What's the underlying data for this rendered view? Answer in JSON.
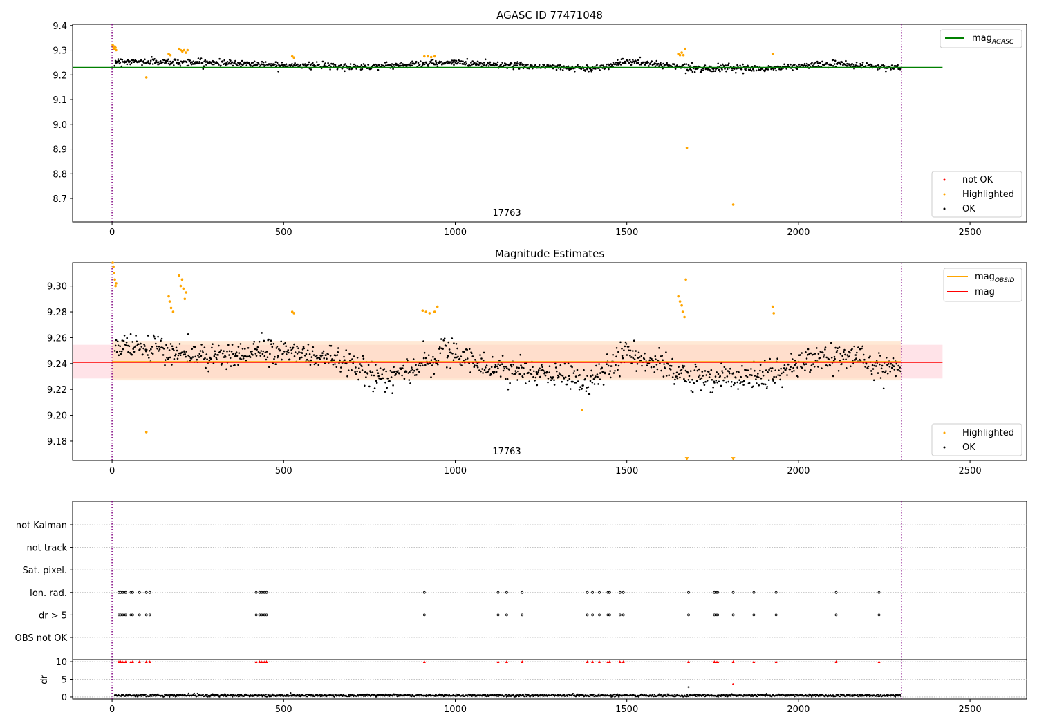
{
  "figure": {
    "colors": {
      "ok": "#000000",
      "highlighted": "#ffa500",
      "not_ok": "#ff0000",
      "mag_agasc_line": "#008000",
      "mag_line": "#ff0000",
      "mag_obsid_line": "#ffa500",
      "vline": "#800080",
      "band_mag": "#ffc0cb",
      "band_obsid": "#ffdab9",
      "grid": "#b0b0b0"
    }
  },
  "chart_data": [
    {
      "id": "panel1",
      "type": "scatter",
      "title": "AGASC ID 77471048",
      "xlabel": "",
      "ylabel": "",
      "xlim": [
        -115,
        2665
      ],
      "ylim": [
        8.605,
        9.405
      ],
      "xticks": [
        0,
        500,
        1000,
        1500,
        2000,
        2500
      ],
      "yticks": [
        9.4,
        9.3,
        9.2,
        9.1,
        9.0,
        8.9,
        8.8,
        8.7
      ],
      "ytick_decimals": 1,
      "grid": false,
      "obsid_label": "17763",
      "obsid_label_x": 1150,
      "obsid_boundaries": [
        0,
        2300
      ],
      "lines": [
        {
          "name": "mag_AGASC",
          "label_main": "mag",
          "label_sub": "AGASC",
          "y": 9.23,
          "x": [
            -115,
            2420
          ]
        }
      ],
      "legend_top": {
        "placement": "upper-right",
        "entries": [
          "mag_AGASC"
        ]
      },
      "legend_bottom": {
        "placement": "lower-right",
        "entries": [
          "not OK",
          "Highlighted",
          "OK"
        ]
      },
      "series": [
        {
          "name": "OK",
          "baseline": [
            [
              0,
              9.255
            ],
            [
              300,
              9.25
            ],
            [
              700,
              9.232
            ],
            [
              1000,
              9.25
            ],
            [
              1400,
              9.225
            ],
            [
              1500,
              9.255
            ],
            [
              1700,
              9.228
            ],
            [
              1900,
              9.225
            ],
            [
              2100,
              9.245
            ],
            [
              2300,
              9.228
            ]
          ],
          "n": 1150,
          "noise": 0.012
        },
        {
          "name": "Highlighted",
          "points": [
            [
              2,
              9.32
            ],
            [
              4,
              9.31
            ],
            [
              6,
              9.305
            ],
            [
              8,
              9.315
            ],
            [
              10,
              9.31
            ],
            [
              12,
              9.3
            ],
            [
              100,
              9.19
            ],
            [
              165,
              9.285
            ],
            [
              170,
              9.28
            ],
            [
              195,
              9.305
            ],
            [
              200,
              9.3
            ],
            [
              205,
              9.295
            ],
            [
              210,
              9.3
            ],
            [
              215,
              9.29
            ],
            [
              220,
              9.3
            ],
            [
              525,
              9.275
            ],
            [
              530,
              9.27
            ],
            [
              910,
              9.275
            ],
            [
              920,
              9.275
            ],
            [
              930,
              9.272
            ],
            [
              940,
              9.275
            ],
            [
              1650,
              9.285
            ],
            [
              1655,
              9.28
            ],
            [
              1660,
              9.29
            ],
            [
              1665,
              9.28
            ],
            [
              1670,
              9.305
            ],
            [
              1675,
              8.905
            ],
            [
              1810,
              8.675
            ],
            [
              1925,
              9.285
            ]
          ]
        },
        {
          "name": "not OK",
          "points": []
        }
      ]
    },
    {
      "id": "panel2",
      "type": "scatter",
      "title": "Magnitude Estimates",
      "xlabel": "",
      "ylabel": "",
      "xlim": [
        -115,
        2665
      ],
      "ylim": [
        9.165,
        9.318
      ],
      "xticks": [
        0,
        500,
        1000,
        1500,
        2000,
        2500
      ],
      "yticks": [
        9.3,
        9.28,
        9.26,
        9.24,
        9.22,
        9.2,
        9.18
      ],
      "ytick_decimals": 2,
      "grid": false,
      "obsid_label": "17763",
      "obsid_label_x": 1150,
      "obsid_boundaries": [
        0,
        2300
      ],
      "lines": [
        {
          "name": "mag_OBSID",
          "label_main": "mag",
          "label_sub": "OBSID",
          "y": 9.2415,
          "x": [
            0,
            2300
          ]
        },
        {
          "name": "mag",
          "label_main": "mag",
          "label_sub": "",
          "y": 9.241,
          "x": [
            -115,
            2420
          ]
        }
      ],
      "bands": [
        {
          "name": "mag",
          "y": [
            9.2285,
            9.2545
          ],
          "x": [
            -115,
            2420
          ]
        },
        {
          "name": "mag_OBSID",
          "y": [
            9.227,
            9.2575
          ],
          "x": [
            0,
            2300
          ]
        }
      ],
      "legend_top": {
        "placement": "upper-right",
        "entries": [
          "mag_OBSID",
          "mag"
        ]
      },
      "legend_bottom": {
        "placement": "lower-right",
        "entries": [
          "Highlighted",
          "OK"
        ]
      },
      "series": [
        {
          "name": "OK",
          "baseline": [
            [
              0,
              9.255
            ],
            [
              300,
              9.245
            ],
            [
              500,
              9.25
            ],
            [
              700,
              9.24
            ],
            [
              800,
              9.228
            ],
            [
              1000,
              9.25
            ],
            [
              1100,
              9.235
            ],
            [
              1300,
              9.232
            ],
            [
              1400,
              9.226
            ],
            [
              1450,
              9.238
            ],
            [
              1500,
              9.25
            ],
            [
              1600,
              9.238
            ],
            [
              1700,
              9.228
            ],
            [
              1900,
              9.23
            ],
            [
              2000,
              9.24
            ],
            [
              2150,
              9.245
            ],
            [
              2300,
              9.235
            ]
          ],
          "n": 1150,
          "noise": 0.009
        },
        {
          "name": "Highlighted",
          "points": [
            [
              2,
              9.318
            ],
            [
              4,
              9.315
            ],
            [
              6,
              9.31
            ],
            [
              8,
              9.305
            ],
            [
              10,
              9.3
            ],
            [
              12,
              9.302
            ],
            [
              100,
              9.187
            ],
            [
              165,
              9.292
            ],
            [
              168,
              9.288
            ],
            [
              172,
              9.283
            ],
            [
              178,
              9.28
            ],
            [
              195,
              9.308
            ],
            [
              200,
              9.3
            ],
            [
              204,
              9.305
            ],
            [
              208,
              9.298
            ],
            [
              212,
              9.29
            ],
            [
              216,
              9.295
            ],
            [
              525,
              9.28
            ],
            [
              530,
              9.279
            ],
            [
              905,
              9.281
            ],
            [
              915,
              9.28
            ],
            [
              925,
              9.279
            ],
            [
              940,
              9.28
            ],
            [
              948,
              9.284
            ],
            [
              1650,
              9.292
            ],
            [
              1655,
              9.288
            ],
            [
              1660,
              9.285
            ],
            [
              1663,
              9.28
            ],
            [
              1668,
              9.276
            ],
            [
              1672,
              9.305
            ],
            [
              1370,
              9.204
            ],
            [
              1925,
              9.284
            ],
            [
              1928,
              9.279
            ]
          ]
        },
        {
          "name": "Highlighted-offscale",
          "points": [
            [
              1675,
              9.166
            ],
            [
              1810,
              9.166
            ]
          ]
        }
      ]
    },
    {
      "id": "panel3",
      "type": "scatter",
      "title": "",
      "xlabel": "",
      "ylabel": "",
      "xlim": [
        -115,
        2665
      ],
      "obsid_boundaries": [
        0,
        2300
      ],
      "categories": [
        "not Kalman",
        "not track",
        "Sat. pixel.",
        "Ion. rad.",
        "dr > 5",
        "OBS not OK"
      ],
      "flag_x": {
        "Ion. rad.": [
          20,
          25,
          30,
          35,
          40,
          55,
          60,
          80,
          100,
          110,
          420,
          430,
          435,
          440,
          445,
          450,
          910,
          1125,
          1150,
          1195,
          1385,
          1400,
          1420,
          1445,
          1450,
          1480,
          1490,
          1680,
          1755,
          1760,
          1765,
          1810,
          1870,
          1935,
          2110,
          2235
        ],
        "dr > 5": [
          20,
          25,
          30,
          35,
          40,
          55,
          60,
          80,
          100,
          110,
          420,
          430,
          435,
          440,
          445,
          450,
          910,
          1125,
          1150,
          1195,
          1385,
          1400,
          1420,
          1445,
          1450,
          1480,
          1490,
          1680,
          1755,
          1760,
          1765,
          1810,
          1870,
          1935,
          2110,
          2235
        ]
      }
    },
    {
      "id": "panel4",
      "type": "scatter",
      "title": "",
      "xlabel": "",
      "ylabel": "dr",
      "xlim": [
        -115,
        2665
      ],
      "ylim": [
        -0.6,
        10.6
      ],
      "xticks": [
        0,
        500,
        1000,
        1500,
        2000,
        2500
      ],
      "yticks": [
        0,
        5,
        10
      ],
      "obsid_boundaries": [
        0,
        2300
      ],
      "series": [
        {
          "name": "OK",
          "baseline_y": 0.45,
          "n": 1150,
          "noise": 0.18
        },
        {
          "name": "clipped",
          "x": [
            20,
            25,
            30,
            35,
            40,
            55,
            60,
            80,
            100,
            110,
            420,
            430,
            435,
            440,
            445,
            450,
            910,
            1125,
            1150,
            1195,
            1385,
            1400,
            1420,
            1445,
            1450,
            1480,
            1490,
            1680,
            1755,
            1760,
            1765,
            1810,
            1870,
            1935,
            2110,
            2235
          ],
          "y": 10
        },
        {
          "name": "outliers",
          "points": [
            [
              1680,
              2.8
            ],
            [
              1810,
              3.6
            ]
          ]
        }
      ]
    }
  ]
}
